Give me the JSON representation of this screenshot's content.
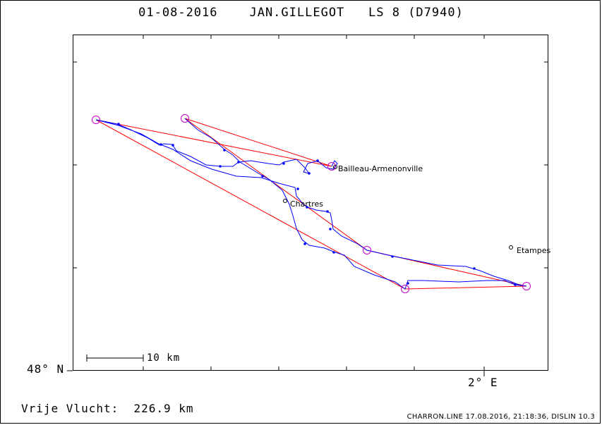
{
  "header": {
    "date": "01-08-2016",
    "pilot": "JAN.GILLEGOT",
    "glider": "LS 8 (D7940)"
  },
  "axes": {
    "lat_label": "48° N",
    "lon_label": "2° E"
  },
  "scale": {
    "label": "10 km"
  },
  "places": {
    "p1": "Bailleau-Armenonville",
    "p2": "Chartres",
    "p3": "Etampes"
  },
  "summary": {
    "label": "Vrije Vlucht:",
    "distance": "226.9 km"
  },
  "footer": {
    "file": "CHARRON.LINE",
    "timestamp": "17.08.2016, 21:18:36,",
    "software": "DISLIN 10.3"
  },
  "colors": {
    "task_line": "#ff0000",
    "track": "#0000ff",
    "turnpoint": "#cc00cc",
    "frame": "#000000"
  }
}
